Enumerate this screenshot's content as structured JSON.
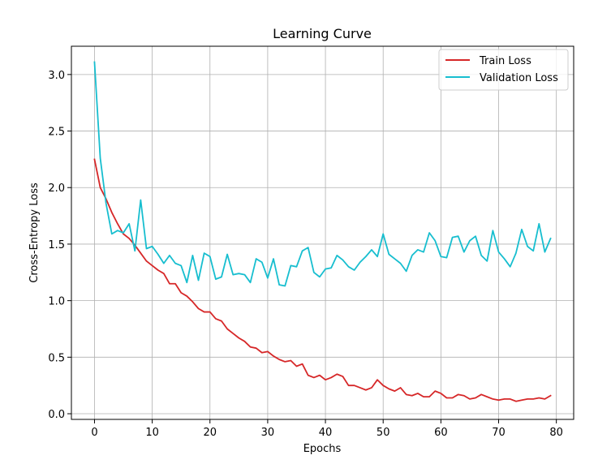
{
  "chart_data": {
    "type": "line",
    "title": "Learning Curve",
    "xlabel": "Epochs",
    "ylabel": "Cross-Entropy Loss",
    "xlim": [
      -4,
      83
    ],
    "ylim": [
      -0.05,
      3.25
    ],
    "xticks": [
      0,
      10,
      20,
      30,
      40,
      50,
      60,
      70,
      80
    ],
    "xtick_labels": [
      "0",
      "10",
      "20",
      "30",
      "40",
      "50",
      "60",
      "70",
      "80"
    ],
    "yticks": [
      0.0,
      0.5,
      1.0,
      1.5,
      2.0,
      2.5,
      3.0
    ],
    "ytick_labels": [
      "0.0",
      "0.5",
      "1.0",
      "1.5",
      "2.0",
      "2.5",
      "3.0"
    ],
    "grid": true,
    "legend_position": "top-right",
    "x": [
      0,
      1,
      2,
      3,
      4,
      5,
      6,
      7,
      8,
      9,
      10,
      11,
      12,
      13,
      14,
      15,
      16,
      17,
      18,
      19,
      20,
      21,
      22,
      23,
      24,
      25,
      26,
      27,
      28,
      29,
      30,
      31,
      32,
      33,
      34,
      35,
      36,
      37,
      38,
      39,
      40,
      41,
      42,
      43,
      44,
      45,
      46,
      47,
      48,
      49,
      50,
      51,
      52,
      53,
      54,
      55,
      56,
      57,
      58,
      59,
      60,
      61,
      62,
      63,
      64,
      65,
      66,
      67,
      68,
      69,
      70,
      71,
      72,
      73,
      74,
      75,
      76,
      77,
      78,
      79
    ],
    "series": [
      {
        "name": "Train Loss",
        "color": "#d62728",
        "values": [
          2.25,
          2.0,
          1.9,
          1.78,
          1.68,
          1.59,
          1.55,
          1.49,
          1.42,
          1.35,
          1.31,
          1.27,
          1.24,
          1.15,
          1.15,
          1.07,
          1.04,
          0.99,
          0.93,
          0.9,
          0.9,
          0.84,
          0.82,
          0.75,
          0.71,
          0.67,
          0.64,
          0.59,
          0.58,
          0.54,
          0.55,
          0.51,
          0.48,
          0.46,
          0.47,
          0.42,
          0.44,
          0.34,
          0.32,
          0.34,
          0.3,
          0.32,
          0.35,
          0.33,
          0.25,
          0.25,
          0.23,
          0.21,
          0.23,
          0.3,
          0.25,
          0.22,
          0.2,
          0.23,
          0.17,
          0.16,
          0.18,
          0.15,
          0.15,
          0.2,
          0.18,
          0.14,
          0.14,
          0.17,
          0.16,
          0.13,
          0.14,
          0.17,
          0.15,
          0.13,
          0.12,
          0.13,
          0.13,
          0.11,
          0.12,
          0.13,
          0.13,
          0.14,
          0.13,
          0.16
        ]
      },
      {
        "name": "Validation Loss",
        "color": "#17becf",
        "values": [
          3.11,
          2.26,
          1.86,
          1.59,
          1.62,
          1.6,
          1.68,
          1.44,
          1.89,
          1.46,
          1.48,
          1.41,
          1.33,
          1.4,
          1.33,
          1.31,
          1.16,
          1.4,
          1.18,
          1.42,
          1.39,
          1.19,
          1.21,
          1.41,
          1.23,
          1.24,
          1.23,
          1.16,
          1.37,
          1.34,
          1.2,
          1.37,
          1.14,
          1.13,
          1.31,
          1.3,
          1.44,
          1.47,
          1.25,
          1.21,
          1.28,
          1.29,
          1.4,
          1.36,
          1.3,
          1.27,
          1.34,
          1.39,
          1.45,
          1.39,
          1.59,
          1.41,
          1.37,
          1.33,
          1.26,
          1.4,
          1.45,
          1.43,
          1.6,
          1.53,
          1.39,
          1.38,
          1.56,
          1.57,
          1.43,
          1.53,
          1.57,
          1.4,
          1.35,
          1.62,
          1.43,
          1.37,
          1.3,
          1.42,
          1.63,
          1.48,
          1.44,
          1.68,
          1.43,
          1.55
        ]
      }
    ]
  }
}
